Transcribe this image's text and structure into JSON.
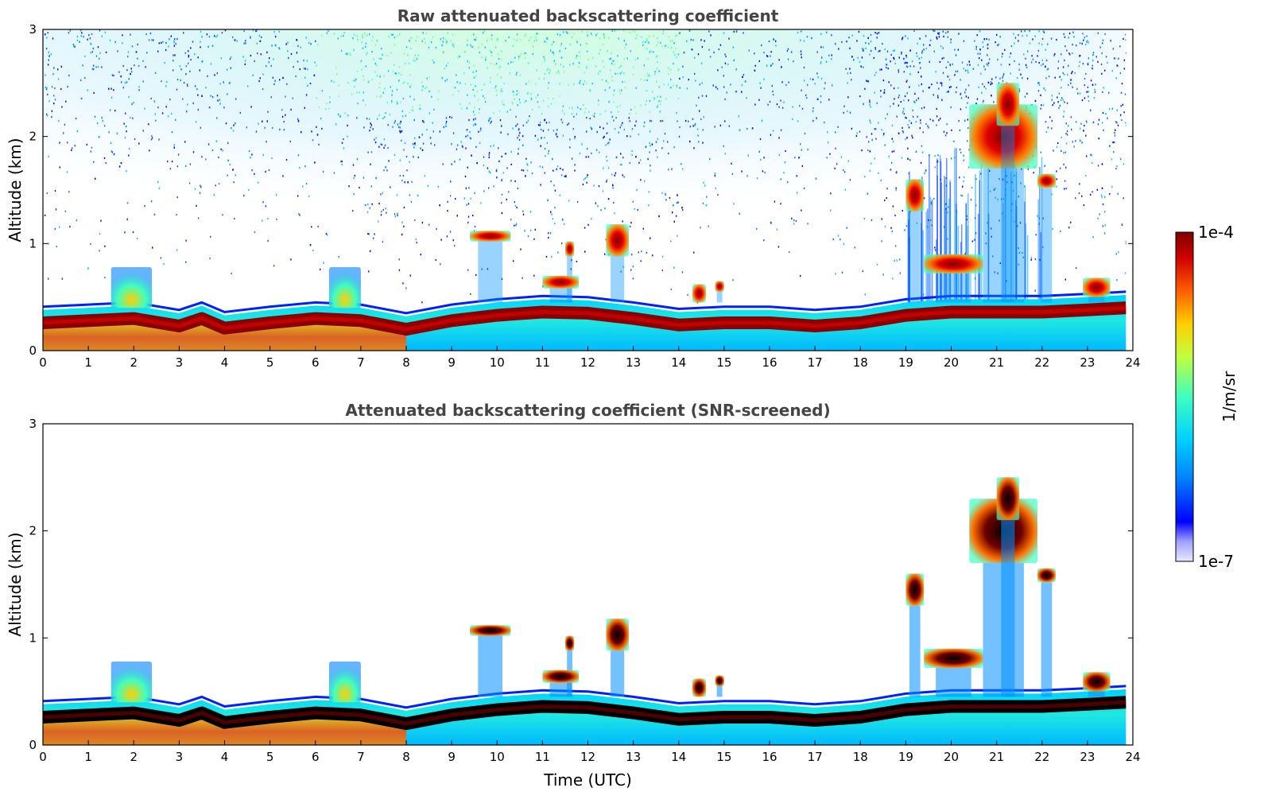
{
  "chart_data": [
    {
      "type": "heatmap",
      "title": "Raw attenuated backscattering coefficient",
      "xlabel": "",
      "ylabel": "Altitude (km)",
      "xlim": [
        0,
        24
      ],
      "ylim": [
        0,
        3
      ],
      "xticks": [
        "0",
        "1",
        "2",
        "3",
        "4",
        "5",
        "6",
        "7",
        "8",
        "9",
        "10",
        "11",
        "12",
        "13",
        "14",
        "15",
        "16",
        "17",
        "18",
        "19",
        "20",
        "21",
        "22",
        "23",
        "24"
      ],
      "yticks": [
        "0",
        "1",
        "2",
        "3"
      ],
      "data_end_hour": 23.85,
      "boundary_layer_top_km": [
        [
          0,
          0.38
        ],
        [
          1,
          0.4
        ],
        [
          2,
          0.42
        ],
        [
          3,
          0.35
        ],
        [
          3.5,
          0.42
        ],
        [
          4,
          0.33
        ],
        [
          5,
          0.38
        ],
        [
          6,
          0.42
        ],
        [
          7,
          0.4
        ],
        [
          8,
          0.32
        ],
        [
          9,
          0.4
        ],
        [
          10,
          0.45
        ],
        [
          11,
          0.48
        ],
        [
          12,
          0.47
        ],
        [
          13,
          0.42
        ],
        [
          14,
          0.36
        ],
        [
          15,
          0.38
        ],
        [
          16,
          0.38
        ],
        [
          17,
          0.35
        ],
        [
          18,
          0.38
        ],
        [
          19,
          0.45
        ],
        [
          20,
          0.48
        ],
        [
          21,
          0.48
        ],
        [
          22,
          0.48
        ],
        [
          23,
          0.5
        ],
        [
          23.85,
          0.52
        ]
      ],
      "features": [
        {
          "kind": "aerosol",
          "x": [
            1.5,
            2.4
          ],
          "y": [
            0.4,
            0.78
          ]
        },
        {
          "kind": "aerosol",
          "x": [
            6.3,
            7.0
          ],
          "y": [
            0.4,
            0.78
          ]
        },
        {
          "kind": "cloud",
          "x": [
            9.4,
            10.3
          ],
          "y": [
            1.02,
            1.12
          ]
        },
        {
          "kind": "cloud",
          "x": [
            11.5,
            11.7
          ],
          "y": [
            0.88,
            1.02
          ]
        },
        {
          "kind": "cloud",
          "x": [
            11.0,
            11.8
          ],
          "y": [
            0.58,
            0.7
          ]
        },
        {
          "kind": "cloud",
          "x": [
            12.4,
            12.9
          ],
          "y": [
            0.88,
            1.18
          ]
        },
        {
          "kind": "cloud",
          "x": [
            14.3,
            14.6
          ],
          "y": [
            0.45,
            0.62
          ]
        },
        {
          "kind": "cloud",
          "x": [
            14.8,
            15.0
          ],
          "y": [
            0.55,
            0.65
          ]
        },
        {
          "kind": "cloud",
          "x": [
            19.0,
            19.4
          ],
          "y": [
            1.3,
            1.6
          ]
        },
        {
          "kind": "cloud",
          "x": [
            19.4,
            20.7
          ],
          "y": [
            0.72,
            0.9
          ]
        },
        {
          "kind": "cloud",
          "x": [
            20.4,
            21.9
          ],
          "y": [
            1.7,
            2.3
          ]
        },
        {
          "kind": "cloud",
          "x": [
            21.0,
            21.5
          ],
          "y": [
            2.1,
            2.5
          ]
        },
        {
          "kind": "cloud",
          "x": [
            21.9,
            22.3
          ],
          "y": [
            1.52,
            1.65
          ]
        },
        {
          "kind": "cloud",
          "x": [
            22.9,
            23.5
          ],
          "y": [
            0.5,
            0.68
          ]
        }
      ]
    },
    {
      "type": "heatmap",
      "title": "Attenuated backscattering coefficient (SNR-screened)",
      "xlabel": "Time (UTC)",
      "ylabel": "Altitude (km)",
      "xlim": [
        0,
        24
      ],
      "ylim": [
        0,
        3
      ],
      "xticks": [
        "0",
        "1",
        "2",
        "3",
        "4",
        "5",
        "6",
        "7",
        "8",
        "9",
        "10",
        "11",
        "12",
        "13",
        "14",
        "15",
        "16",
        "17",
        "18",
        "19",
        "20",
        "21",
        "22",
        "23",
        "24"
      ],
      "yticks": [
        "0",
        "1",
        "2",
        "3"
      ],
      "noise_screened": true
    }
  ],
  "colorbar": {
    "label": "1/m/sr",
    "max_label": "1e-4",
    "min_label": "1e-7",
    "colormap": [
      "#0000ff",
      "#0080ff",
      "#00d0ff",
      "#40ffbf",
      "#bfff40",
      "#ffd000",
      "#ff6000",
      "#d00000",
      "#7f0000"
    ]
  }
}
